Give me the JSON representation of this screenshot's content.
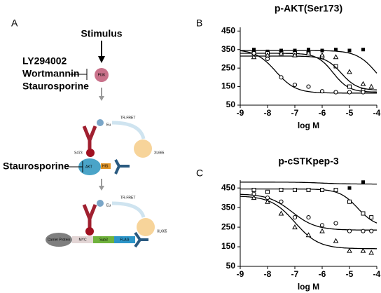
{
  "panel_labels": [
    "A",
    "B",
    "C"
  ],
  "diagram": {
    "stimulus": "Stimulus",
    "inhibitors": [
      "LY294002",
      "Wortmannin",
      "Staurosporine"
    ],
    "inhibitor2": "Staurosporine",
    "pi3k": "PI3K",
    "eu1": "Eu",
    "trfret1": "TR-FRET",
    "xl1": "XL665",
    "s473": "S473",
    "akt": "AKT",
    "his": "HIS",
    "trfret2": "TR-FRET",
    "eu2": "Eu",
    "xl2": "XL665",
    "carrier": "Carrier Protein",
    "myc": "MYC",
    "sub": "Sub3",
    "flag": "FLAG"
  },
  "chart_data": [
    {
      "type": "scatter",
      "title": "p-AKT(Ser173)",
      "x_label": "log M",
      "xlim": [
        -9,
        -4
      ],
      "xticks": [
        -9,
        -8,
        -7,
        -6,
        -5,
        -4
      ],
      "ylim": [
        50,
        470
      ],
      "yticks": [
        50,
        150,
        250,
        350,
        450
      ],
      "series": [
        {
          "marker": "filled-square",
          "color": "#000000",
          "x": [
            -8.5,
            -8,
            -7.5,
            -7,
            -6.5,
            -6,
            -5.5,
            -5,
            -4.5
          ],
          "values": [
            350,
            340,
            345,
            345,
            350,
            345,
            350,
            345,
            350
          ],
          "fit": {
            "top": 345,
            "bottom": 100,
            "log_ec50": -4,
            "hill": 1.2
          }
        },
        {
          "marker": "open-square",
          "color": "#000000",
          "x": [
            -8.5,
            -8,
            -7.5,
            -7,
            -6.5,
            -6,
            -5.5,
            -5,
            -4.5
          ],
          "values": [
            330,
            330,
            330,
            330,
            330,
            310,
            260,
            150,
            130
          ],
          "fit": {
            "top": 330,
            "bottom": 120,
            "log_ec50": -5.6,
            "hill": 1.5
          }
        },
        {
          "marker": "triangle",
          "color": "#000000",
          "x": [
            -8.5,
            -8,
            -7.5,
            -7,
            -6.5,
            -6,
            -5.5,
            -5,
            -4.5,
            -4.2
          ],
          "values": [
            310,
            320,
            330,
            320,
            330,
            320,
            310,
            230,
            165,
            150
          ],
          "fit": {
            "top": 315,
            "bottom": 130,
            "log_ec50": -5.3,
            "hill": 1.5
          }
        },
        {
          "marker": "circle",
          "color": "#000000",
          "x": [
            -8.5,
            -8,
            -7.5,
            -7,
            -6.5,
            -6,
            -5.5,
            -5,
            -4.5
          ],
          "values": [
            330,
            300,
            200,
            160,
            150,
            125,
            120,
            120,
            120
          ],
          "fit": {
            "top": 350,
            "bottom": 115,
            "log_ec50": -7.7,
            "hill": 1.2
          }
        }
      ]
    },
    {
      "type": "scatter",
      "title": "p-cSTKpep-3",
      "x_label": "log M",
      "xlim": [
        -9,
        -4
      ],
      "xticks": [
        -9,
        -8,
        -7,
        -6,
        -5,
        -4
      ],
      "ylim": [
        50,
        490
      ],
      "yticks": [
        50,
        150,
        250,
        350,
        450
      ],
      "series": [
        {
          "marker": "filled-square",
          "color": "#000000",
          "x": [
            -5,
            -4.5
          ],
          "values": [
            450,
            480
          ],
          "fit": {
            "top": 480,
            "bottom": 470,
            "log_ec50": -6,
            "hill": 1
          }
        },
        {
          "marker": "open-square",
          "color": "#000000",
          "x": [
            -8.5,
            -8,
            -7.5,
            -7,
            -6.5,
            -6,
            -5.5,
            -5,
            -4.5,
            -4.2
          ],
          "values": [
            440,
            430,
            440,
            440,
            440,
            440,
            440,
            380,
            320,
            300
          ],
          "fit": {
            "top": 445,
            "bottom": 250,
            "log_ec50": -4.7,
            "hill": 1.3
          }
        },
        {
          "marker": "circle",
          "color": "#000000",
          "x": [
            -8.5,
            -8,
            -7.5,
            -7,
            -6.5,
            -6,
            -5.5,
            -5,
            -4.5,
            -4.2
          ],
          "values": [
            420,
            400,
            380,
            300,
            300,
            260,
            270,
            230,
            230,
            230
          ],
          "fit": {
            "top": 420,
            "bottom": 235,
            "log_ec50": -7.1,
            "hill": 1
          }
        },
        {
          "marker": "triangle",
          "color": "#000000",
          "x": [
            -8.5,
            -8,
            -7.5,
            -7,
            -6.5,
            -6,
            -5.5,
            -5,
            -4.5,
            -4.2
          ],
          "values": [
            400,
            380,
            320,
            250,
            210,
            230,
            180,
            130,
            130,
            120
          ],
          "fit": {
            "top": 410,
            "bottom": 140,
            "log_ec50": -7,
            "hill": 1
          }
        }
      ]
    }
  ]
}
